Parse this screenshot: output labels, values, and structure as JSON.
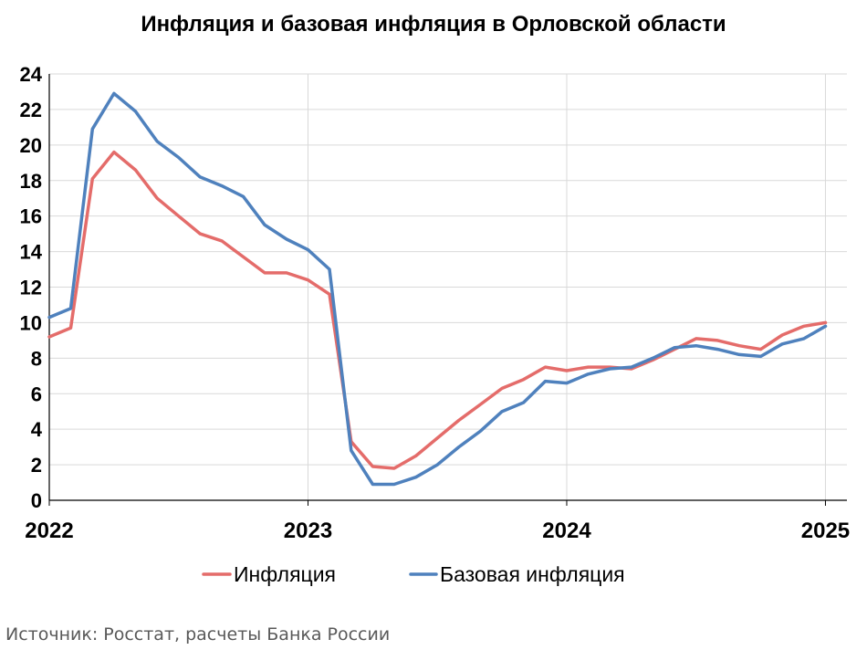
{
  "chart_data": {
    "type": "line",
    "title": "Инфляция и базовая инфляция в Орловской области",
    "xlabel": "",
    "ylabel": "",
    "ylim": [
      0,
      24
    ],
    "yticks": [
      "0",
      "2",
      "4",
      "6",
      "8",
      "10",
      "12",
      "14",
      "16",
      "18",
      "20",
      "22",
      "24"
    ],
    "xticks": [
      {
        "label": "2022",
        "value": 2022.0
      },
      {
        "label": "2023",
        "value": 2023.0
      },
      {
        "label": "2024",
        "value": 2024.0
      },
      {
        "label": "2025",
        "value": 2025.0
      }
    ],
    "xlim": [
      2022.0,
      2025.083
    ],
    "grid": true,
    "legend_position": "bottom",
    "x": [
      2022.0,
      2022.083,
      2022.167,
      2022.25,
      2022.333,
      2022.417,
      2022.5,
      2022.583,
      2022.667,
      2022.75,
      2022.833,
      2022.917,
      2023.0,
      2023.083,
      2023.167,
      2023.25,
      2023.333,
      2023.417,
      2023.5,
      2023.583,
      2023.667,
      2023.75,
      2023.833,
      2023.917,
      2024.0,
      2024.083,
      2024.167,
      2024.25,
      2024.333,
      2024.417,
      2024.5,
      2024.583,
      2024.667,
      2024.75,
      2024.833,
      2024.917,
      2025.0
    ],
    "series": [
      {
        "name": "Инфляция",
        "color": "#e46c6a",
        "values": [
          9.2,
          9.7,
          18.1,
          19.6,
          18.6,
          17.0,
          16.0,
          15.0,
          14.6,
          13.7,
          12.8,
          12.8,
          12.4,
          11.6,
          3.3,
          1.9,
          1.8,
          2.5,
          3.5,
          4.5,
          5.4,
          6.3,
          6.8,
          7.5,
          7.3,
          7.5,
          7.5,
          7.4,
          7.9,
          8.5,
          9.1,
          9.0,
          8.7,
          8.5,
          9.3,
          9.8,
          10.0
        ]
      },
      {
        "name": "Базовая инфляция",
        "color": "#4f81bd",
        "values": [
          10.3,
          10.8,
          20.9,
          22.9,
          21.9,
          20.2,
          19.3,
          18.2,
          17.7,
          17.1,
          15.5,
          14.7,
          14.1,
          13.0,
          2.8,
          0.9,
          0.9,
          1.3,
          2.0,
          3.0,
          3.9,
          5.0,
          5.5,
          6.7,
          6.6,
          7.1,
          7.4,
          7.5,
          8.0,
          8.6,
          8.7,
          8.5,
          8.2,
          8.1,
          8.8,
          9.1,
          9.8
        ]
      }
    ]
  },
  "source": "Источник: Росстат, расчеты Банка России"
}
